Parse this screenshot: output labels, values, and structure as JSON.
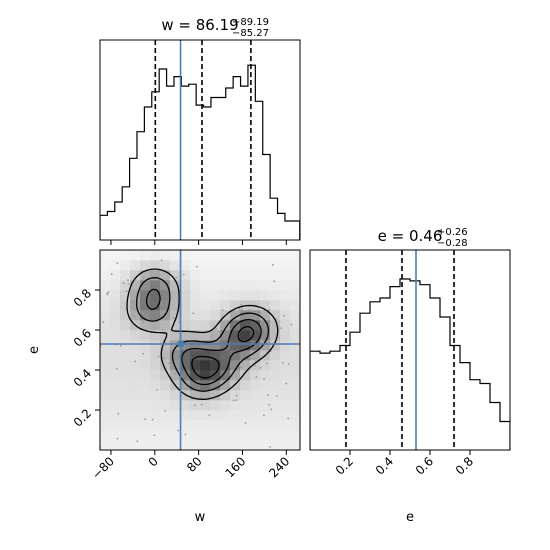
{
  "chart_data": [
    {
      "type": "histogram",
      "panel": "w-marginal",
      "title": {
        "prefix": "w = ",
        "value": "86.19",
        "plus": "+89.19",
        "minus": "−85.27"
      },
      "xlim": [
        -100,
        265
      ],
      "bins_left": [
        -100,
        -86.5,
        -73,
        -59.5,
        -46,
        -32.5,
        -19,
        -5.5,
        8,
        21.5,
        35,
        48.5,
        62,
        75.5,
        89,
        102.5,
        116,
        129.5,
        143,
        156.5,
        170,
        183.5,
        197,
        210.5,
        224,
        237.5,
        251
      ],
      "counts": [
        0.13,
        0.15,
        0.2,
        0.28,
        0.43,
        0.57,
        0.7,
        0.78,
        0.9,
        0.81,
        0.86,
        0.81,
        0.82,
        0.71,
        0.7,
        0.75,
        0.75,
        0.8,
        0.86,
        0.81,
        0.92,
        0.73,
        0.45,
        0.22,
        0.14,
        0.1,
        0.1
      ],
      "quantile_lines": [
        0.92,
        86.19,
        175.38
      ],
      "truth_line": 47
    },
    {
      "type": "heatmap",
      "panel": "w-e-joint",
      "xlabel": "w",
      "ylabel": "e",
      "xlim": [
        -100,
        265
      ],
      "ylim": [
        0.0,
        1.0
      ],
      "x_ticks": [
        "−80",
        "0",
        "80",
        "160",
        "240"
      ],
      "x_tick_values": [
        -80,
        0,
        80,
        160,
        240
      ],
      "y_ticks": [
        "0.2",
        "0.4",
        "0.6",
        "0.8"
      ],
      "y_tick_values": [
        0.2,
        0.4,
        0.6,
        0.8
      ],
      "truth_point": [
        47,
        0.53
      ],
      "density_peaks": [
        [
          0,
          0.82
        ],
        [
          -5,
          0.7
        ],
        [
          175,
          0.62
        ],
        [
          160,
          0.55
        ],
        [
          60,
          0.48
        ],
        [
          115,
          0.43
        ],
        [
          85,
          0.36
        ]
      ]
    },
    {
      "type": "histogram",
      "panel": "e-marginal",
      "title": {
        "prefix": "e = ",
        "value": "0.46",
        "plus": "+0.26",
        "minus": "−0.28"
      },
      "xlabel": "e",
      "xlim": [
        0.0,
        1.0
      ],
      "x_ticks": [
        "0.2",
        "0.4",
        "0.6",
        "0.8"
      ],
      "x_tick_values": [
        0.2,
        0.4,
        0.6,
        0.8
      ],
      "bins_left": [
        0.0,
        0.05,
        0.1,
        0.15,
        0.2,
        0.25,
        0.3,
        0.35,
        0.4,
        0.45,
        0.5,
        0.55,
        0.6,
        0.65,
        0.7,
        0.75,
        0.8,
        0.85,
        0.9,
        0.95
      ],
      "counts": [
        0.52,
        0.51,
        0.52,
        0.55,
        0.62,
        0.72,
        0.78,
        0.8,
        0.86,
        0.9,
        0.89,
        0.87,
        0.8,
        0.7,
        0.55,
        0.46,
        0.37,
        0.35,
        0.25,
        0.15
      ],
      "quantile_lines": [
        0.18,
        0.46,
        0.72
      ],
      "truth_line": 0.53
    }
  ]
}
